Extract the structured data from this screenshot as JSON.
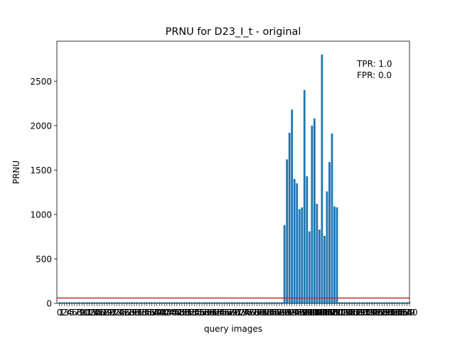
{
  "colors": {
    "bar": "#1f77b4",
    "threshold": "#d62728",
    "axis": "#000000"
  },
  "chart_data": {
    "type": "bar",
    "title": "PRNU for D23_I_t - original",
    "xlabel": "query images",
    "ylabel": "PRNU",
    "ylim": [
      0,
      2950
    ],
    "xlim": [
      -1,
      140
    ],
    "yticks": [
      0,
      500,
      1000,
      1500,
      2000,
      2500
    ],
    "threshold": 60,
    "annotations": [
      "TPR: 1.0",
      "FPR: 0.0"
    ],
    "grid": false,
    "legend": "none",
    "values": [
      12,
      12,
      12,
      12,
      12,
      12,
      12,
      12,
      12,
      12,
      12,
      12,
      12,
      12,
      12,
      12,
      12,
      12,
      12,
      12,
      12,
      12,
      12,
      12,
      12,
      12,
      12,
      12,
      12,
      12,
      12,
      12,
      12,
      12,
      12,
      12,
      12,
      12,
      12,
      12,
      12,
      12,
      12,
      12,
      12,
      12,
      12,
      12,
      12,
      12,
      12,
      12,
      12,
      12,
      12,
      12,
      12,
      12,
      12,
      12,
      12,
      12,
      12,
      12,
      12,
      12,
      12,
      12,
      12,
      12,
      12,
      12,
      12,
      12,
      12,
      12,
      12,
      12,
      12,
      12,
      12,
      12,
      12,
      12,
      12,
      12,
      12,
      12,
      12,
      12,
      880,
      1620,
      1920,
      2180,
      1400,
      1350,
      1060,
      1080,
      2400,
      1430,
      810,
      2000,
      2080,
      1120,
      830,
      2800,
      760,
      1260,
      1590,
      1910,
      1090,
      1080,
      12,
      12,
      12,
      12,
      12,
      12,
      12,
      12,
      12,
      12,
      12,
      12,
      12,
      12,
      12,
      12,
      12,
      12,
      12,
      12,
      12,
      12,
      12,
      12,
      12,
      12,
      12,
      12,
      12
    ]
  }
}
